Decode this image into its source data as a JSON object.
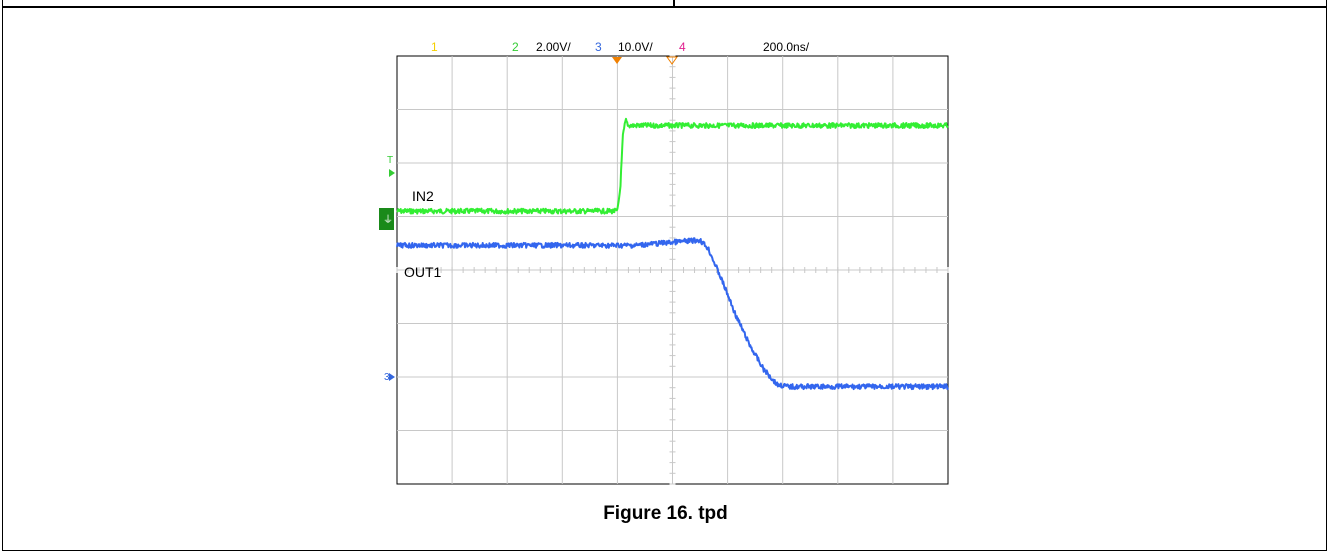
{
  "caption": "Figure 16. tpd",
  "scope_header": {
    "ch1": {
      "num": "1",
      "color": "#f5d000"
    },
    "ch2": {
      "num": "2",
      "scale": "2.00V/",
      "color": "#33cc33"
    },
    "ch3": {
      "num": "3",
      "scale": "10.0V/",
      "color": "#3366dd"
    },
    "ch4": {
      "num": "4",
      "color": "#e0208f"
    },
    "timebase": "200.0ns/"
  },
  "chart_data": {
    "type": "line",
    "title": "",
    "xlabel": "",
    "ylabel": "",
    "grid": true,
    "x_divisions": 10,
    "y_divisions": 8,
    "x_unit": "div (200.0ns/div)",
    "y_unit": "div",
    "xlim": [
      0,
      10
    ],
    "ylim": [
      0,
      8
    ],
    "series": [
      {
        "name": "IN2",
        "color": "#33ee33",
        "x": [
          0,
          4.0,
          4.05,
          4.1,
          4.15,
          4.2,
          10
        ],
        "y": [
          5.1,
          5.1,
          5.5,
          6.5,
          6.8,
          6.7,
          6.7
        ]
      },
      {
        "name": "OUT1",
        "color": "#3366ee",
        "x": [
          0,
          4.3,
          5.5,
          5.65,
          5.9,
          6.15,
          6.4,
          6.65,
          6.9,
          7.1,
          10
        ],
        "y": [
          4.46,
          4.46,
          4.56,
          4.4,
          3.8,
          3.15,
          2.6,
          2.15,
          1.86,
          1.82,
          1.82
        ]
      }
    ],
    "annotations": [
      {
        "text": "IN2"
      },
      {
        "text": "OUT1"
      }
    ],
    "markers": {
      "trigger_T": "T",
      "ch3_ground": "3"
    }
  }
}
